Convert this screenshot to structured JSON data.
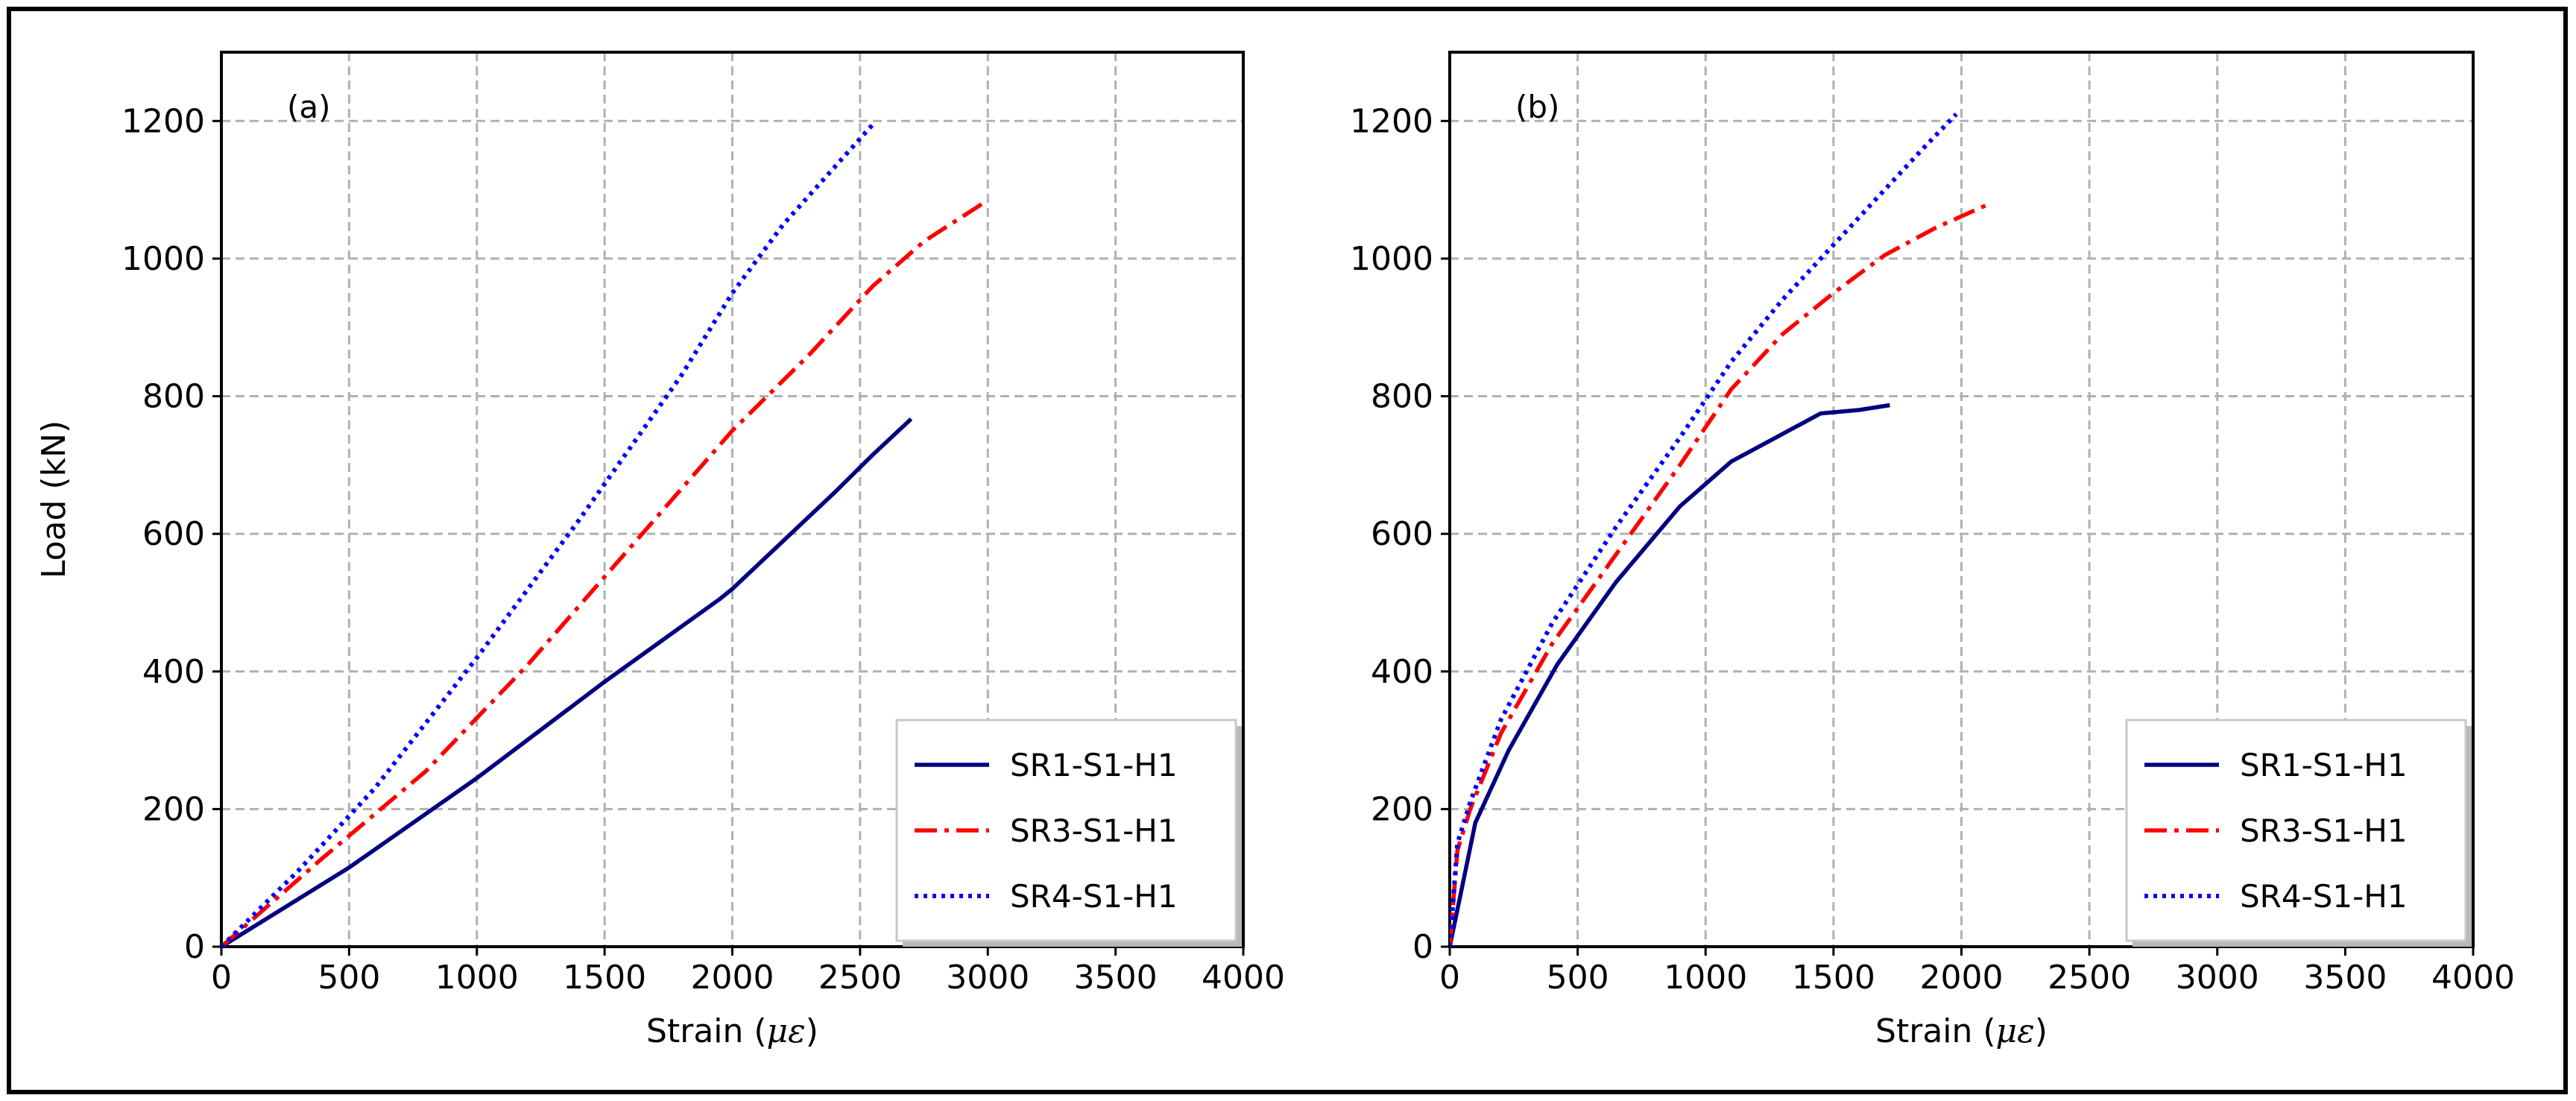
{
  "chart_data": [
    {
      "type": "line",
      "panel_label": "(a)",
      "xlabel_prefix": "Strain (",
      "xlabel_symbol": "με",
      "xlabel_suffix": ")",
      "ylabel": "Load (kN)",
      "xlim": [
        0,
        4000
      ],
      "ylim": [
        0,
        1300
      ],
      "xticks": [
        0,
        500,
        1000,
        1500,
        2000,
        2500,
        3000,
        3500,
        4000
      ],
      "yticks": [
        0,
        200,
        400,
        600,
        800,
        1000,
        1200
      ],
      "grid": true,
      "legend_position": "lower-right",
      "series": [
        {
          "name": "SR1-S1-H1",
          "style": "solid",
          "color": "#000080",
          "x": [
            0,
            500,
            1000,
            1500,
            1950,
            2000,
            2200,
            2400,
            2550,
            2700
          ],
          "y": [
            0,
            115,
            245,
            385,
            505,
            520,
            590,
            660,
            715,
            767
          ]
        },
        {
          "name": "SR3-S1-H1",
          "style": "dashdot",
          "color": "#ff0000",
          "x": [
            0,
            400,
            800,
            1200,
            1600,
            2000,
            2300,
            2550,
            2750,
            3000
          ],
          "y": [
            0,
            130,
            255,
            410,
            580,
            750,
            860,
            960,
            1025,
            1085
          ]
        },
        {
          "name": "SR4-S1-H1",
          "style": "dotted",
          "color": "#0000ff",
          "x": [
            0,
            300,
            600,
            1000,
            1400,
            1800,
            2000,
            2200,
            2550
          ],
          "y": [
            0,
            110,
            230,
            420,
            620,
            830,
            950,
            1050,
            1195
          ]
        }
      ]
    },
    {
      "type": "line",
      "panel_label": "(b)",
      "xlabel_prefix": "Strain (",
      "xlabel_symbol": "με",
      "xlabel_suffix": ")",
      "ylabel": "",
      "xlim": [
        0,
        4000
      ],
      "ylim": [
        0,
        1300
      ],
      "xticks": [
        0,
        500,
        1000,
        1500,
        2000,
        2500,
        3000,
        3500,
        4000
      ],
      "yticks": [
        0,
        200,
        400,
        600,
        800,
        1000,
        1200
      ],
      "grid": true,
      "legend_position": "lower-right",
      "series": [
        {
          "name": "SR1-S1-H1",
          "style": "solid",
          "color": "#000080",
          "x": [
            0,
            50,
            100,
            230,
            420,
            650,
            900,
            1100,
            1300,
            1450,
            1600,
            1720
          ],
          "y": [
            0,
            90,
            180,
            285,
            410,
            530,
            640,
            705,
            745,
            775,
            780,
            787
          ]
        },
        {
          "name": "SR3-S1-H1",
          "style": "dashdot",
          "color": "#ff0000",
          "x": [
            0,
            30,
            80,
            200,
            400,
            650,
            900,
            1100,
            1300,
            1500,
            1700,
            1900,
            2100
          ],
          "y": [
            0,
            140,
            200,
            310,
            440,
            570,
            700,
            810,
            890,
            950,
            1005,
            1045,
            1078
          ]
        },
        {
          "name": "SR4-S1-H1",
          "style": "dotted",
          "color": "#0000ff",
          "x": [
            0,
            30,
            80,
            200,
            400,
            650,
            900,
            1100,
            1300,
            1500,
            1700,
            1850,
            1980
          ],
          "y": [
            0,
            150,
            210,
            330,
            470,
            610,
            740,
            850,
            940,
            1020,
            1100,
            1160,
            1210
          ]
        }
      ]
    }
  ]
}
